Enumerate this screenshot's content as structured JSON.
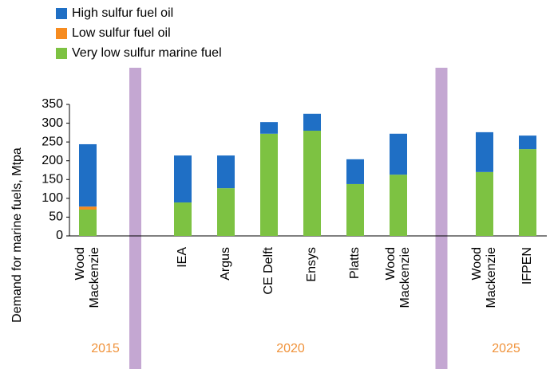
{
  "chart_data": {
    "type": "stacked_bar",
    "y_label": "Demand for marine fuels, Mtpa",
    "categories": [
      "Wood Mackenzie",
      "IEA",
      "Argus",
      "CE Delft",
      "Ensys",
      "Platts",
      "Wood Mackenzie",
      "Wood Mackenzie",
      "IFPEN"
    ],
    "groups": [
      "2015",
      "2020",
      "2020",
      "2020",
      "2020",
      "2020",
      "2020",
      "2025",
      "2025"
    ],
    "group_color": "#f0923a",
    "separator_color": "#c4a7d2",
    "series": [
      {
        "name": "Very low sulfur marine fuel",
        "color": "#7dc242",
        "values": [
          70,
          89,
          127,
          272,
          280,
          138,
          163,
          170,
          231
        ]
      },
      {
        "name": "Low sulfur fuel oil",
        "color": "#f68b1f",
        "values": [
          8,
          0,
          0,
          0,
          0,
          0,
          0,
          0,
          0
        ]
      },
      {
        "name": "High sulfur fuel oil",
        "color": "#1f6fc5",
        "values": [
          166,
          125,
          87,
          31,
          45,
          66,
          109,
          106,
          36
        ]
      }
    ],
    "ylim": [
      0,
      350
    ],
    "yticks": [
      0,
      50,
      100,
      150,
      200,
      250,
      300,
      350
    ]
  }
}
